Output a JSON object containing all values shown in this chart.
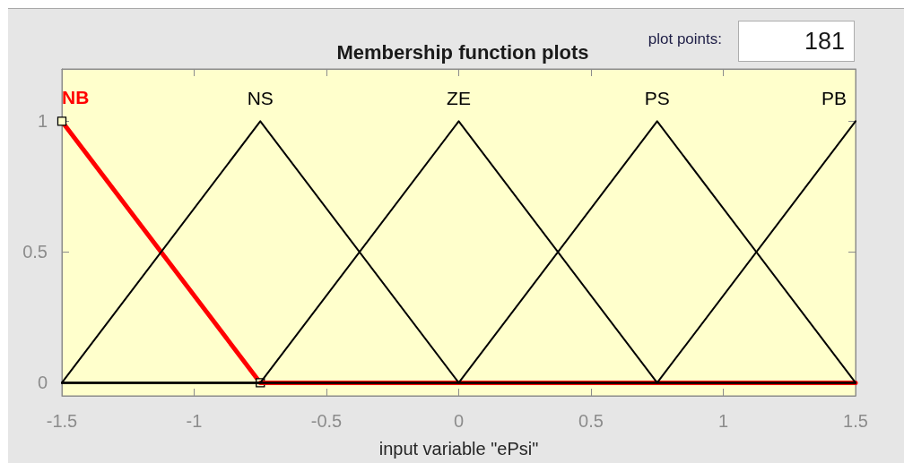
{
  "chart_data": {
    "type": "line",
    "title": "Membership function plots",
    "xlabel": "input variable \"ePsi\"",
    "annotations": [
      "plot points:",
      "181"
    ],
    "xlim": [
      -1.5,
      1.5
    ],
    "xticks": [
      -1.5,
      -1,
      -0.5,
      0,
      0.5,
      1,
      1.5
    ],
    "ylim": [
      -0.05,
      1.2
    ],
    "yticks": [
      0,
      0.5,
      1
    ],
    "grid": false,
    "series": [
      {
        "name": "NB",
        "color": "#ff0000",
        "marker": "square",
        "x": [
          -1.5,
          -0.75
        ],
        "values": [
          1,
          0
        ]
      },
      {
        "color": "#ff0000",
        "x": [
          -0.75,
          1.5
        ],
        "values": [
          0,
          0
        ]
      },
      {
        "name": "NS",
        "color": "#000000",
        "x": [
          -1.5,
          -0.75,
          0,
          1.5
        ],
        "values": [
          0,
          1,
          0,
          0
        ]
      },
      {
        "name": "ZE",
        "color": "#000000",
        "x": [
          -1.5,
          -0.75,
          0,
          0.75,
          1.5
        ],
        "values": [
          0,
          0,
          1,
          0,
          0
        ]
      },
      {
        "name": "PS",
        "color": "#000000",
        "x": [
          -1.5,
          0,
          0.75,
          1.5
        ],
        "values": [
          0,
          0,
          1,
          0
        ]
      },
      {
        "name": "PB",
        "color": "#000000",
        "x": [
          -1.5,
          0.75,
          1.5
        ],
        "values": [
          0,
          0,
          1
        ]
      }
    ]
  }
}
